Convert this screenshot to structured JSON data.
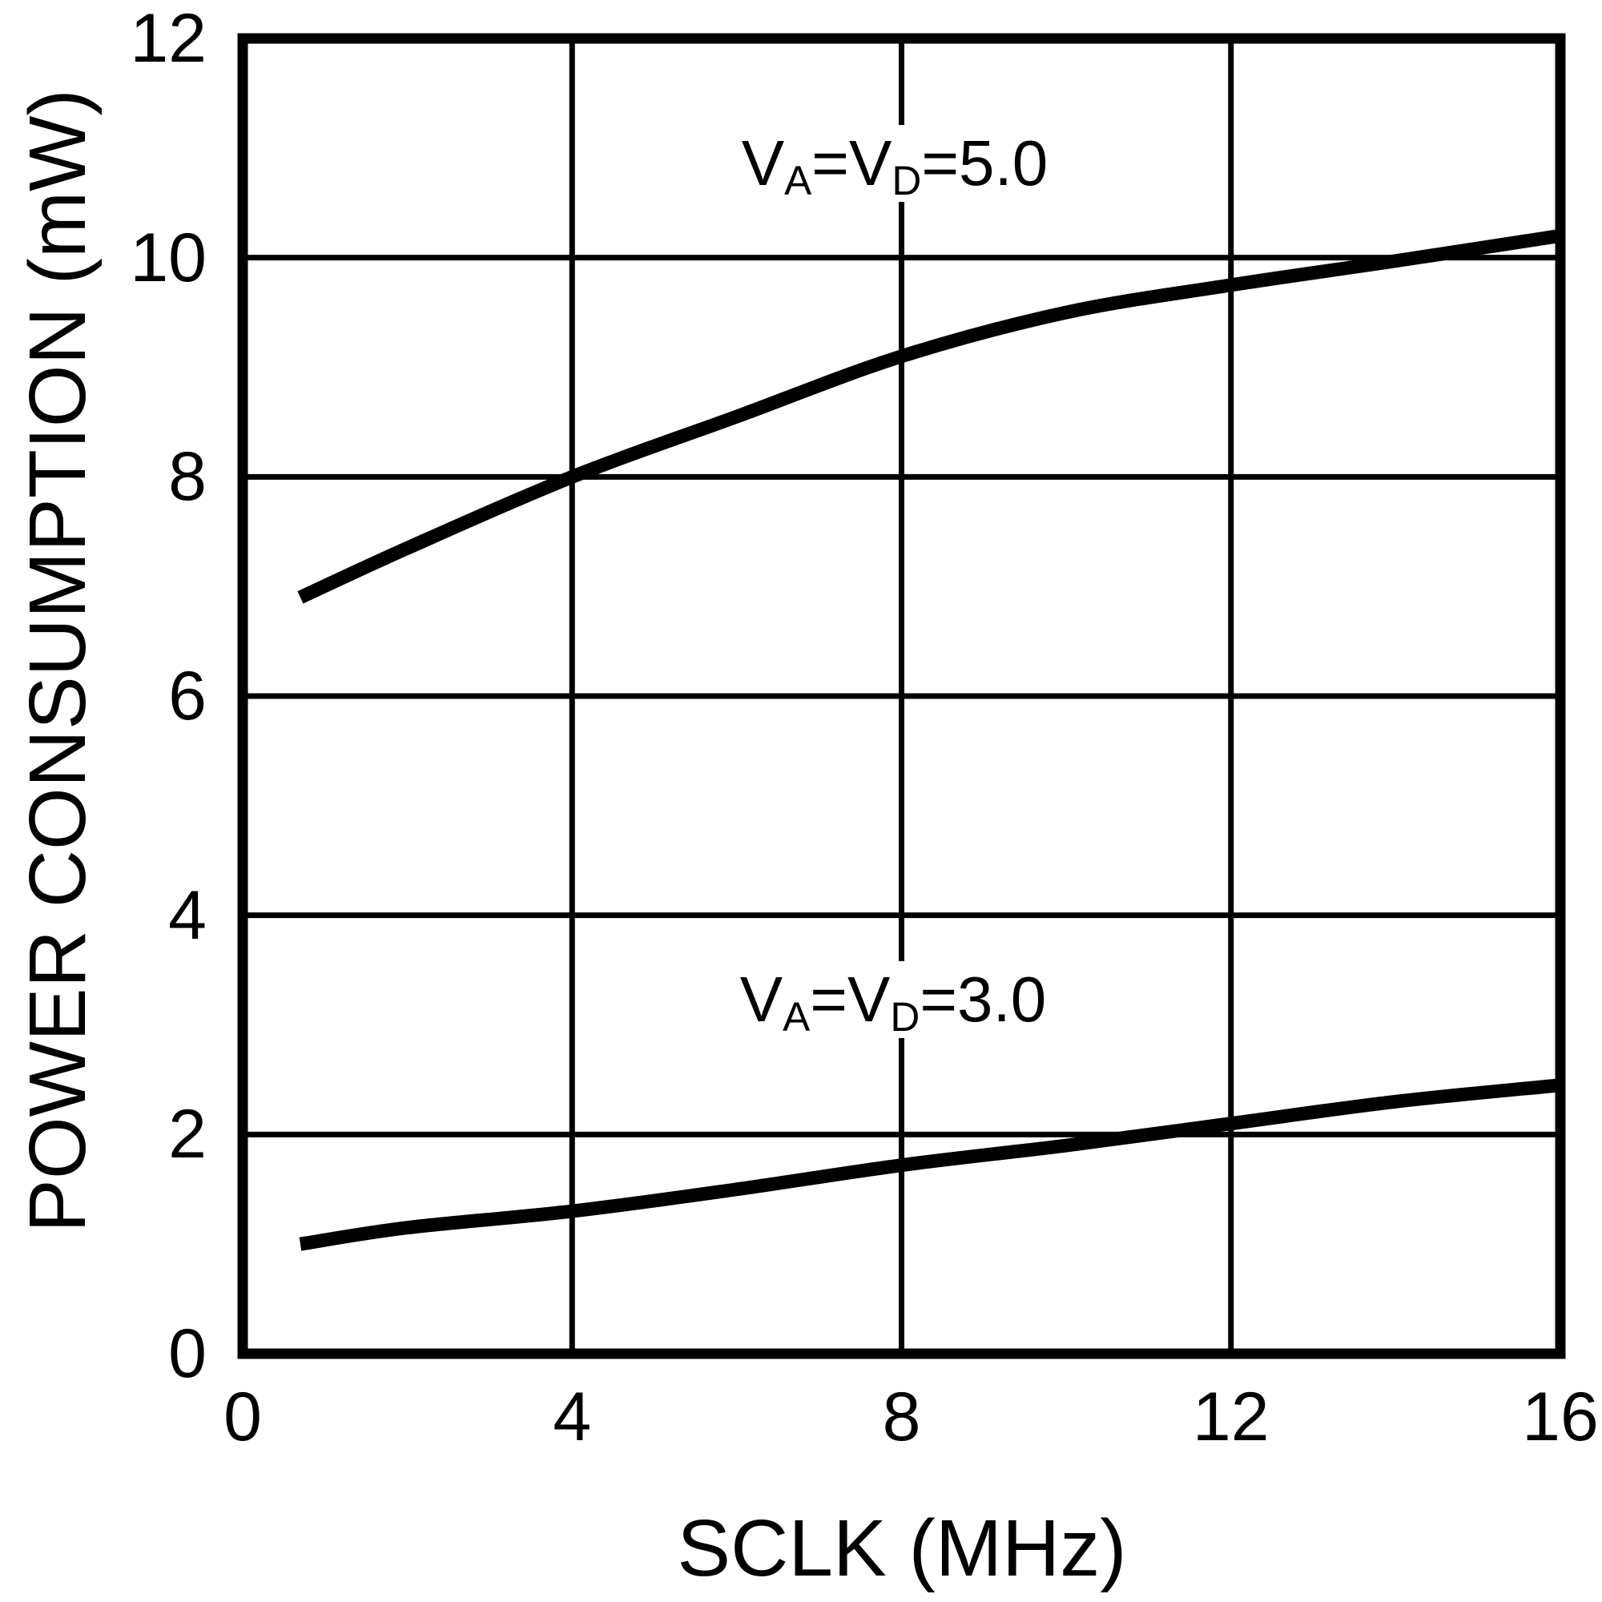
{
  "figure": {
    "background": "#ffffff",
    "line_color": "#000000",
    "grid_color": "#000000"
  },
  "chart_data": {
    "type": "line",
    "title": "",
    "xlabel": "SCLK (MHz)",
    "ylabel": "POWER CONSUMPTION (mW)",
    "xlim": [
      0,
      16
    ],
    "ylim": [
      0,
      12
    ],
    "x_ticks": [
      0,
      4,
      8,
      12,
      16
    ],
    "y_ticks": [
      0,
      2,
      4,
      6,
      8,
      10,
      12
    ],
    "grid": true,
    "legend_position": "inline-annotations",
    "series": [
      {
        "name": "VA=VD=5.0",
        "x": [
          0.7,
          2,
          4,
          6,
          8,
          10,
          12,
          14,
          16
        ],
        "y": [
          6.9,
          7.35,
          8.0,
          8.55,
          9.1,
          9.5,
          9.75,
          9.97,
          10.2
        ]
      },
      {
        "name": "VA=VD=3.0",
        "x": [
          0.7,
          2,
          4,
          6,
          8,
          10,
          12,
          14,
          16
        ],
        "y": [
          1.0,
          1.15,
          1.3,
          1.5,
          1.72,
          1.9,
          2.1,
          2.3,
          2.45
        ]
      }
    ],
    "annotations": [
      {
        "prefix": "V",
        "sub1": "A",
        "mid": "=V",
        "sub2": "D",
        "suffix": "=5.0"
      },
      {
        "prefix": "V",
        "sub1": "A",
        "mid": "=V",
        "sub2": "D",
        "suffix": "=3.0"
      }
    ]
  }
}
